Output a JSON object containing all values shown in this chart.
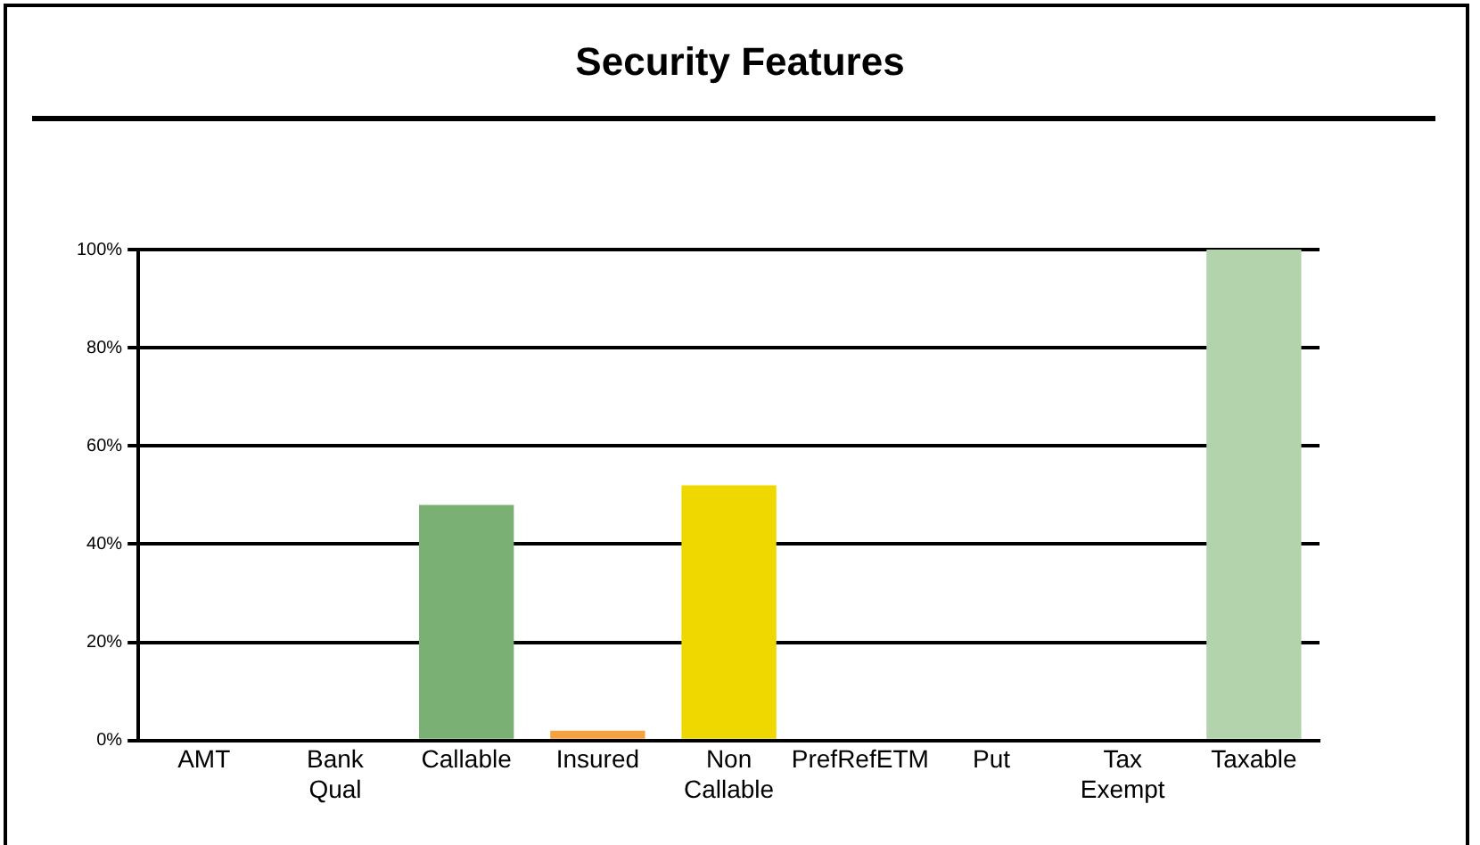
{
  "chart_data": {
    "type": "bar",
    "title": "Security Features",
    "categories": [
      "AMT",
      "Bank Qual",
      "Callable",
      "Insured",
      "Non Callable",
      "PrefRefETM",
      "Put",
      "Tax Exempt",
      "Taxable"
    ],
    "values": [
      0,
      0,
      48,
      2,
      52,
      0,
      0,
      0,
      100
    ],
    "colors": [
      "#3b4a63",
      "#8b4a44",
      "#7ab073",
      "#f4a340",
      "#eed800",
      "#5a4e62",
      "#566577",
      "#8b5e58",
      "#b3d3ad"
    ],
    "ylim": [
      0,
      100
    ],
    "yticks": [
      {
        "value": 0,
        "label": "0%"
      },
      {
        "value": 20,
        "label": "20%"
      },
      {
        "value": 40,
        "label": "40%"
      },
      {
        "value": 60,
        "label": "60%"
      },
      {
        "value": 80,
        "label": "80%"
      },
      {
        "value": 100,
        "label": "100%"
      }
    ],
    "grid": "y"
  }
}
